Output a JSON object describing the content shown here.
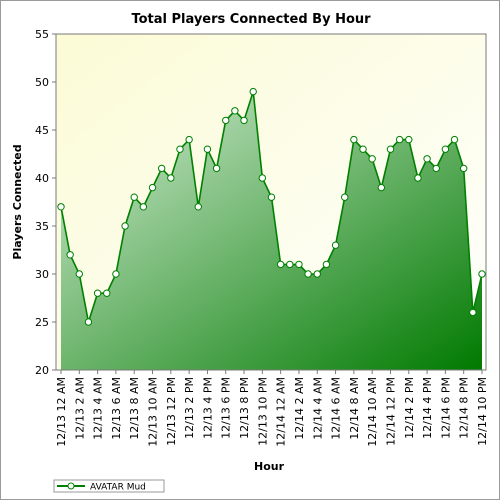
{
  "chart_data": {
    "type": "area",
    "title": "Total Players Connected By Hour",
    "xlabel": "Hour",
    "ylabel": "Players Connected",
    "ylim": [
      20,
      55
    ],
    "yticks": [
      20,
      25,
      30,
      35,
      40,
      45,
      50,
      55
    ],
    "x_tick_labels": [
      "12/13 12 AM",
      "12/13 2 AM",
      "12/13 4 AM",
      "12/13 6 AM",
      "12/13 8 AM",
      "12/13 10 AM",
      "12/13 12 PM",
      "12/13 2 PM",
      "12/13 4 PM",
      "12/13 6 PM",
      "12/13 8 PM",
      "12/13 10 PM",
      "12/14 12 AM",
      "12/14 2 AM",
      "12/14 4 AM",
      "12/14 6 AM",
      "12/14 8 AM",
      "12/14 10 AM",
      "12/14 12 PM",
      "12/14 2 PM",
      "12/14 4 PM",
      "12/14 6 PM",
      "12/14 8 PM",
      "12/14 10 PM"
    ],
    "grid": false,
    "legend_position": "bottom-left",
    "series": [
      {
        "name": "AVATAR Mud",
        "color": "#008000",
        "values": [
          37,
          32,
          30,
          25,
          28,
          28,
          30,
          35,
          38,
          37,
          39,
          41,
          40,
          43,
          44,
          37,
          43,
          41,
          46,
          47,
          46,
          49,
          40,
          38,
          31,
          31,
          31,
          30,
          30,
          31,
          33,
          38,
          44,
          43,
          42,
          39,
          43,
          44,
          44,
          40,
          42,
          41,
          43,
          44,
          41,
          26,
          30
        ]
      }
    ]
  }
}
